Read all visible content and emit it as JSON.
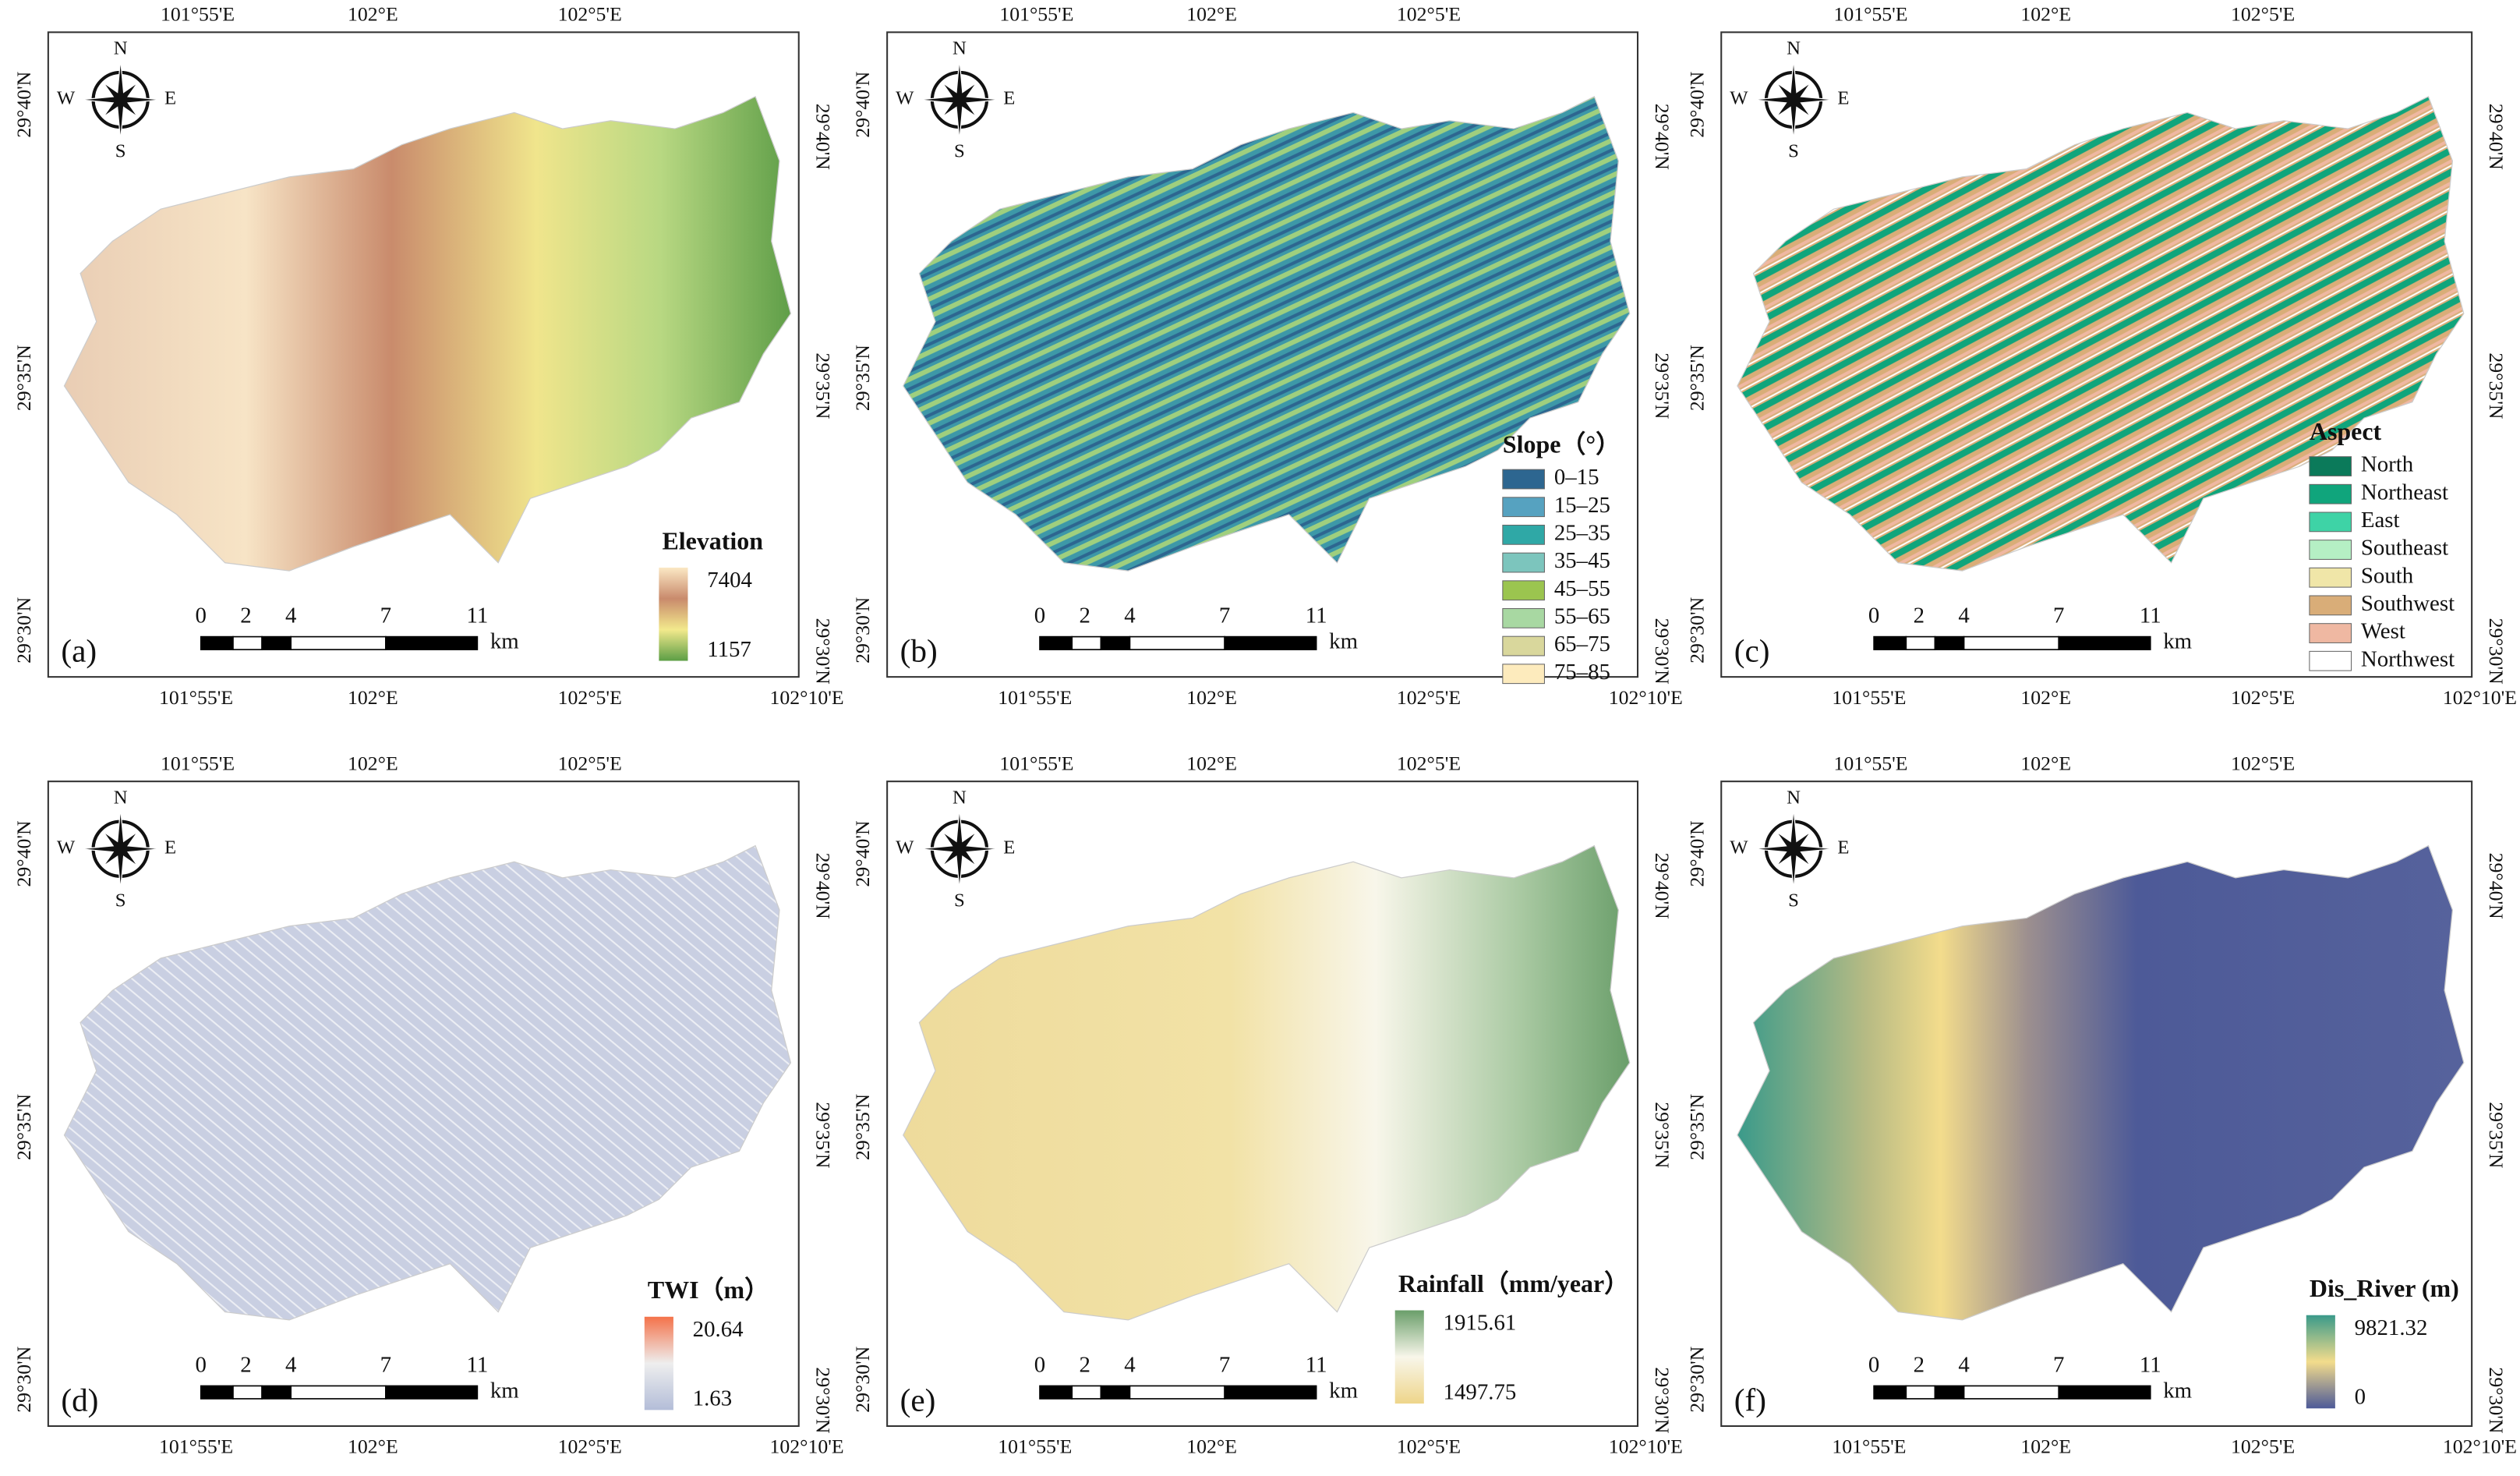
{
  "panels": [
    {
      "label": "(a)",
      "top_lon": [
        "101°55'E",
        "102°E",
        "102°5'E"
      ],
      "bottom_lon": [
        "101°55'E",
        "102°E",
        "102°5'E",
        "102°10'E"
      ],
      "left_lat": [
        "29°40'N",
        "29°35'N",
        "29°30'N"
      ],
      "right_lat": [
        "29°40'N",
        "29°35'N",
        "29°30'N"
      ],
      "compass": {
        "n": "N",
        "s": "S",
        "w": "W",
        "e": "E"
      },
      "scale": {
        "ticks": [
          "0",
          "2",
          "4",
          "7",
          "11"
        ],
        "unit": "km"
      },
      "legend": {
        "title": "Elevation",
        "max": "7404",
        "min": "1157",
        "colors": [
          "#fbe8c4",
          "#c98a6c",
          "#f2e98c",
          "#5c9e45"
        ]
      }
    },
    {
      "label": "(b)",
      "top_lon": [
        "101°55'E",
        "102°E",
        "102°5'E"
      ],
      "bottom_lon": [
        "101°55'E",
        "102°E",
        "102°5'E",
        "102°10'E"
      ],
      "left_lat": [
        "29°40'N",
        "29°35'N",
        "29°30'N"
      ],
      "right_lat": [
        "29°40'N",
        "29°35'N",
        "29°30'N"
      ],
      "compass": {
        "n": "N",
        "s": "S",
        "w": "W",
        "e": "E"
      },
      "scale": {
        "ticks": [
          "0",
          "2",
          "4",
          "7",
          "11"
        ],
        "unit": "km"
      },
      "legend": {
        "title": "Slope（°）",
        "items": [
          {
            "label": "0–15",
            "color": "#2d6690"
          },
          {
            "label": "15–25",
            "color": "#56a2c0"
          },
          {
            "label": "25–35",
            "color": "#2fa8a6"
          },
          {
            "label": "35–45",
            "color": "#7cc5bd"
          },
          {
            "label": "45–55",
            "color": "#9bc54f"
          },
          {
            "label": "55–65",
            "color": "#a8d8a2"
          },
          {
            "label": "65–75",
            "color": "#d9d79c"
          },
          {
            "label": "75–85",
            "color": "#fdebbd"
          }
        ]
      }
    },
    {
      "label": "(c)",
      "top_lon": [
        "101°55'E",
        "102°E",
        "102°5'E"
      ],
      "bottom_lon": [
        "101°55'E",
        "102°E",
        "102°5'E",
        "102°10'E"
      ],
      "left_lat": [
        "29°40'N",
        "29°35'N",
        "29°30'N"
      ],
      "right_lat": [
        "29°40'N",
        "29°35'N",
        "29°30'N"
      ],
      "compass": {
        "n": "N",
        "s": "S",
        "w": "W",
        "e": "E"
      },
      "scale": {
        "ticks": [
          "0",
          "2",
          "4",
          "7",
          "11"
        ],
        "unit": "km"
      },
      "legend": {
        "title": "Aspect",
        "items": [
          {
            "label": "North",
            "color": "#0b7a5a"
          },
          {
            "label": "Northeast",
            "color": "#10a57c"
          },
          {
            "label": "East",
            "color": "#3ed3a6"
          },
          {
            "label": "Southeast",
            "color": "#b5efc4"
          },
          {
            "label": "South",
            "color": "#f0e6a8"
          },
          {
            "label": "Southwest",
            "color": "#d9ad78"
          },
          {
            "label": "West",
            "color": "#efb8a2"
          },
          {
            "label": "Northwest",
            "color": "#ffffff"
          }
        ]
      }
    },
    {
      "label": "(d)",
      "top_lon": [
        "101°55'E",
        "102°E",
        "102°5'E"
      ],
      "bottom_lon": [
        "101°55'E",
        "102°E",
        "102°5'E",
        "102°10'E"
      ],
      "left_lat": [
        "29°40'N",
        "29°35'N",
        "29°30'N"
      ],
      "right_lat": [
        "29°40'N",
        "29°35'N",
        "29°30'N"
      ],
      "compass": {
        "n": "N",
        "s": "S",
        "w": "W",
        "e": "E"
      },
      "scale": {
        "ticks": [
          "0",
          "2",
          "4",
          "7",
          "11"
        ],
        "unit": "km"
      },
      "legend": {
        "title": "TWI（m）",
        "max": "20.64",
        "min": "1.63",
        "colors": [
          "#f4724a",
          "#eeeeee",
          "#b3bdd8"
        ]
      }
    },
    {
      "label": "(e)",
      "top_lon": [
        "101°55'E",
        "102°E",
        "102°5'E"
      ],
      "bottom_lon": [
        "101°55'E",
        "102°E",
        "102°5'E",
        "102°10'E"
      ],
      "left_lat": [
        "29°40'N",
        "29°35'N",
        "29°30'N"
      ],
      "right_lat": [
        "29°40'N",
        "29°35'N",
        "29°30'N"
      ],
      "compass": {
        "n": "N",
        "s": "S",
        "w": "W",
        "e": "E"
      },
      "scale": {
        "ticks": [
          "0",
          "2",
          "4",
          "7",
          "11"
        ],
        "unit": "km"
      },
      "legend": {
        "title": "Rainfall（mm/year）",
        "max": "1915.61",
        "min": "1497.75",
        "colors": [
          "#6a9e6a",
          "#f8f6ea",
          "#eed58a"
        ]
      }
    },
    {
      "label": "(f)",
      "top_lon": [
        "101°55'E",
        "102°E",
        "102°5'E"
      ],
      "bottom_lon": [
        "101°55'E",
        "102°E",
        "102°5'E",
        "102°10'E"
      ],
      "left_lat": [
        "29°40'N",
        "29°35'N",
        "29°30'N"
      ],
      "right_lat": [
        "29°40'N",
        "29°35'N",
        "29°30'N"
      ],
      "compass": {
        "n": "N",
        "s": "S",
        "w": "W",
        "e": "E"
      },
      "scale": {
        "ticks": [
          "0",
          "2",
          "4",
          "7",
          "11"
        ],
        "unit": "km"
      },
      "legend": {
        "title": "Dis_River (m)",
        "max": "9821.32",
        "min": "0",
        "colors": [
          "#3a9a8a",
          "#f3dc8c",
          "#4d5a98"
        ]
      }
    }
  ]
}
